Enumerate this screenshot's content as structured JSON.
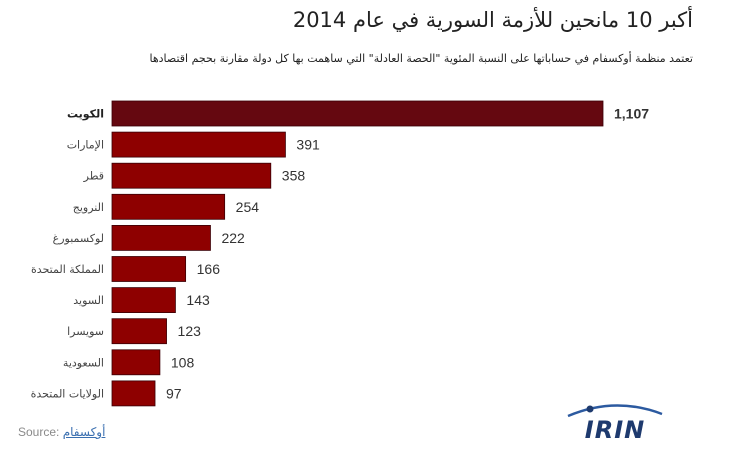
{
  "chart_data": {
    "type": "bar",
    "orientation": "horizontal",
    "title": "أكبر 10 مانحين للأزمة السورية في عام 2014",
    "subtitle": "تعتمد منظمة أوكسفام في حساباتها على النسبة المئوية \"الحصة العادلة\" التي ساهمت بها كل دولة مقارنة بحجم اقتصادها",
    "categories": [
      "الكويت",
      "الإمارات",
      "قطر",
      "النرويج",
      "لوكسمبورغ",
      "المملكة المتحدة",
      "السويد",
      "سويسرا",
      "السعودية",
      "الولايات المتحدة"
    ],
    "values": [
      1107,
      391,
      358,
      254,
      222,
      166,
      143,
      123,
      108,
      97
    ],
    "value_labels": [
      "1,107",
      "391",
      "358",
      "254",
      "222",
      "166",
      "143",
      "123",
      "108",
      "97"
    ],
    "xlim": [
      0,
      1107
    ],
    "grid": false,
    "bar_colors": [
      "#650810",
      "#8e0000"
    ],
    "highlight_index": 0
  },
  "source": {
    "label": "Source:",
    "link": "أوكسفام"
  },
  "logo": {
    "text": "IRIN",
    "icon": "irin-logo-icon",
    "colors": {
      "text": "#1e3a6e",
      "arc": "#2c5aa0",
      "dot": "#1e3a6e"
    }
  }
}
